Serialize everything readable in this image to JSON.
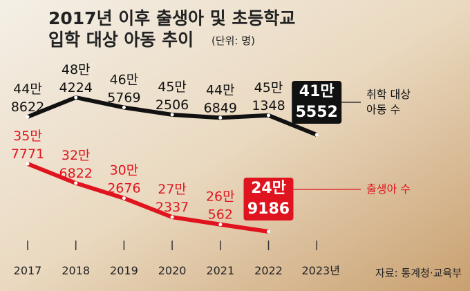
{
  "chart_data": {
    "type": "line",
    "title": "2017년 이후 출생아 및 초등학교\n입학 대상 아동 추이",
    "unit_note": "(단위: 명)",
    "source": "자료: 통계청·교육부",
    "categories": [
      "2017",
      "2018",
      "2019",
      "2020",
      "2021",
      "2022",
      "2023년"
    ],
    "series": [
      {
        "name": "취학 대상\n아동 수",
        "color": "#111111",
        "values": [
          448622,
          484224,
          465769,
          452506,
          446849,
          451348,
          415552
        ],
        "value_labels": [
          "44만\n8622",
          "48만\n4224",
          "46만\n5769",
          "45만\n2506",
          "44만\n6849",
          "45만\n1348",
          "41만\n5552"
        ]
      },
      {
        "name": "출생아 수",
        "color": "#e0141e",
        "values": [
          357771,
          326822,
          302676,
          272337,
          260562,
          249186,
          null
        ],
        "value_labels": [
          "35만\n7771",
          "32만\n6822",
          "30만\n2676",
          "27만\n2337",
          "26만\n562",
          "24만\n9186",
          null
        ]
      }
    ]
  }
}
